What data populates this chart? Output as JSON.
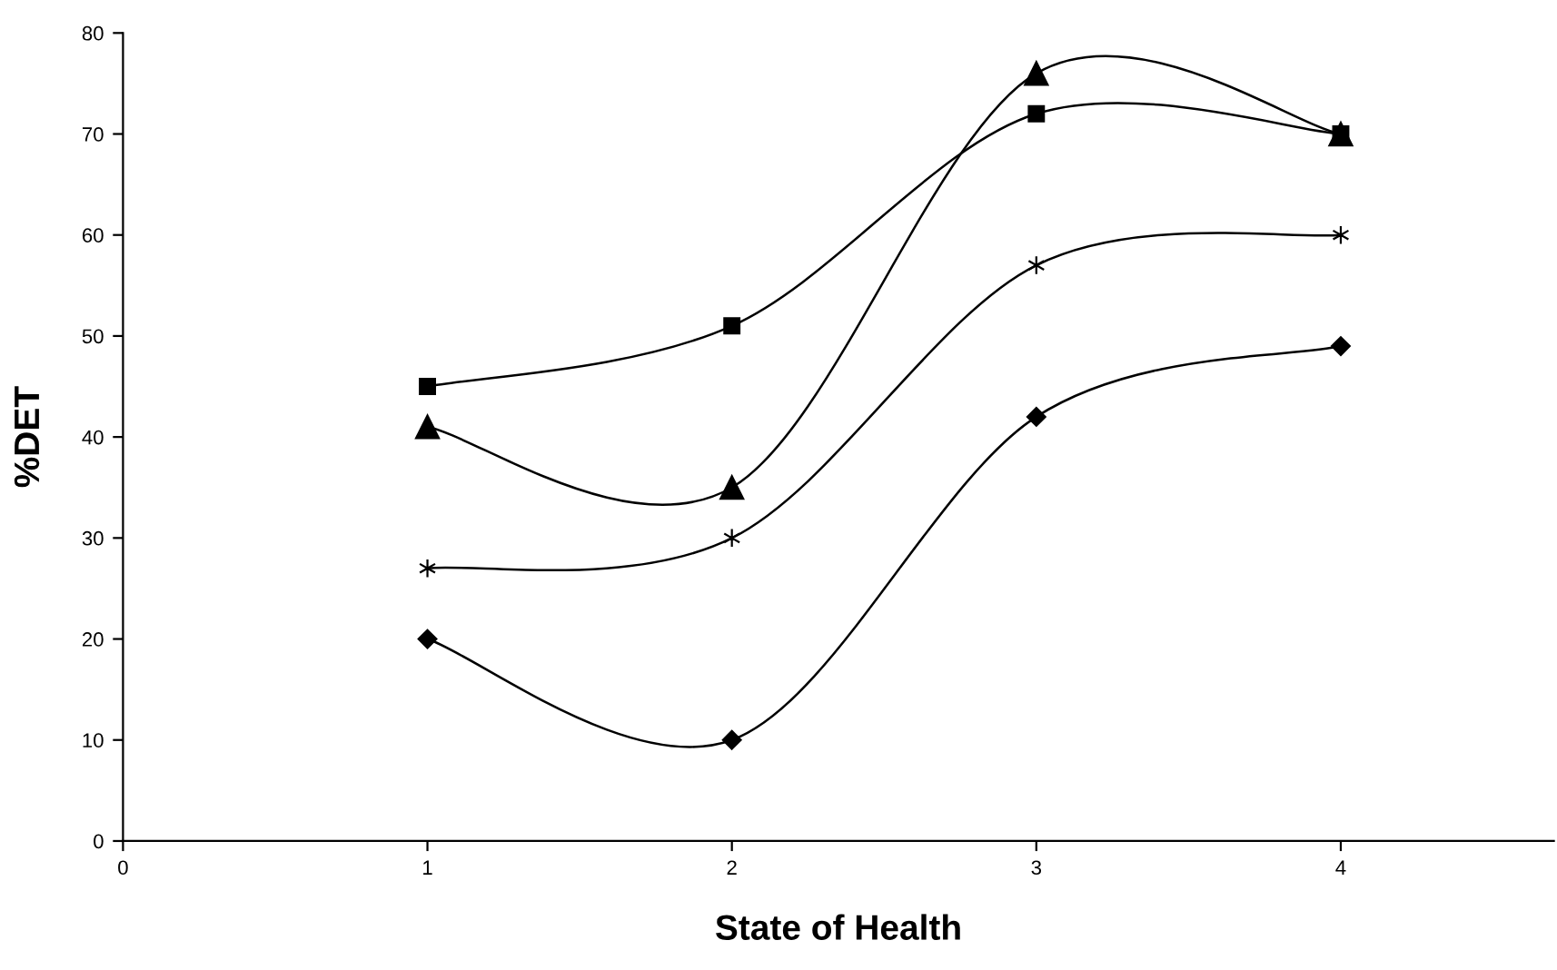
{
  "chart_data": {
    "type": "line",
    "xlabel": "State of Health",
    "ylabel": "%DET",
    "x": [
      1,
      2,
      3,
      4
    ],
    "series": [
      {
        "color": "#000000",
        "marker": "triangle",
        "values": [
          41,
          35,
          76,
          70
        ]
      },
      {
        "color": "#000000",
        "marker": "diamond",
        "values": [
          20,
          10,
          42,
          49
        ]
      },
      {
        "color": "#000000",
        "marker": "cross",
        "values": [
          27,
          30,
          57,
          60
        ]
      },
      {
        "color": "#000000",
        "marker": "square",
        "values": [
          45,
          51,
          72,
          70
        ]
      }
    ],
    "xlim": [
      0,
      4.7
    ],
    "xticks": [
      0,
      1,
      2,
      3,
      4
    ],
    "ylim": [
      0,
      80
    ],
    "yticks": [
      0,
      10,
      20,
      30,
      40,
      50,
      60,
      70,
      80
    ],
    "grid": false,
    "legend": false,
    "line_style": "solid"
  }
}
